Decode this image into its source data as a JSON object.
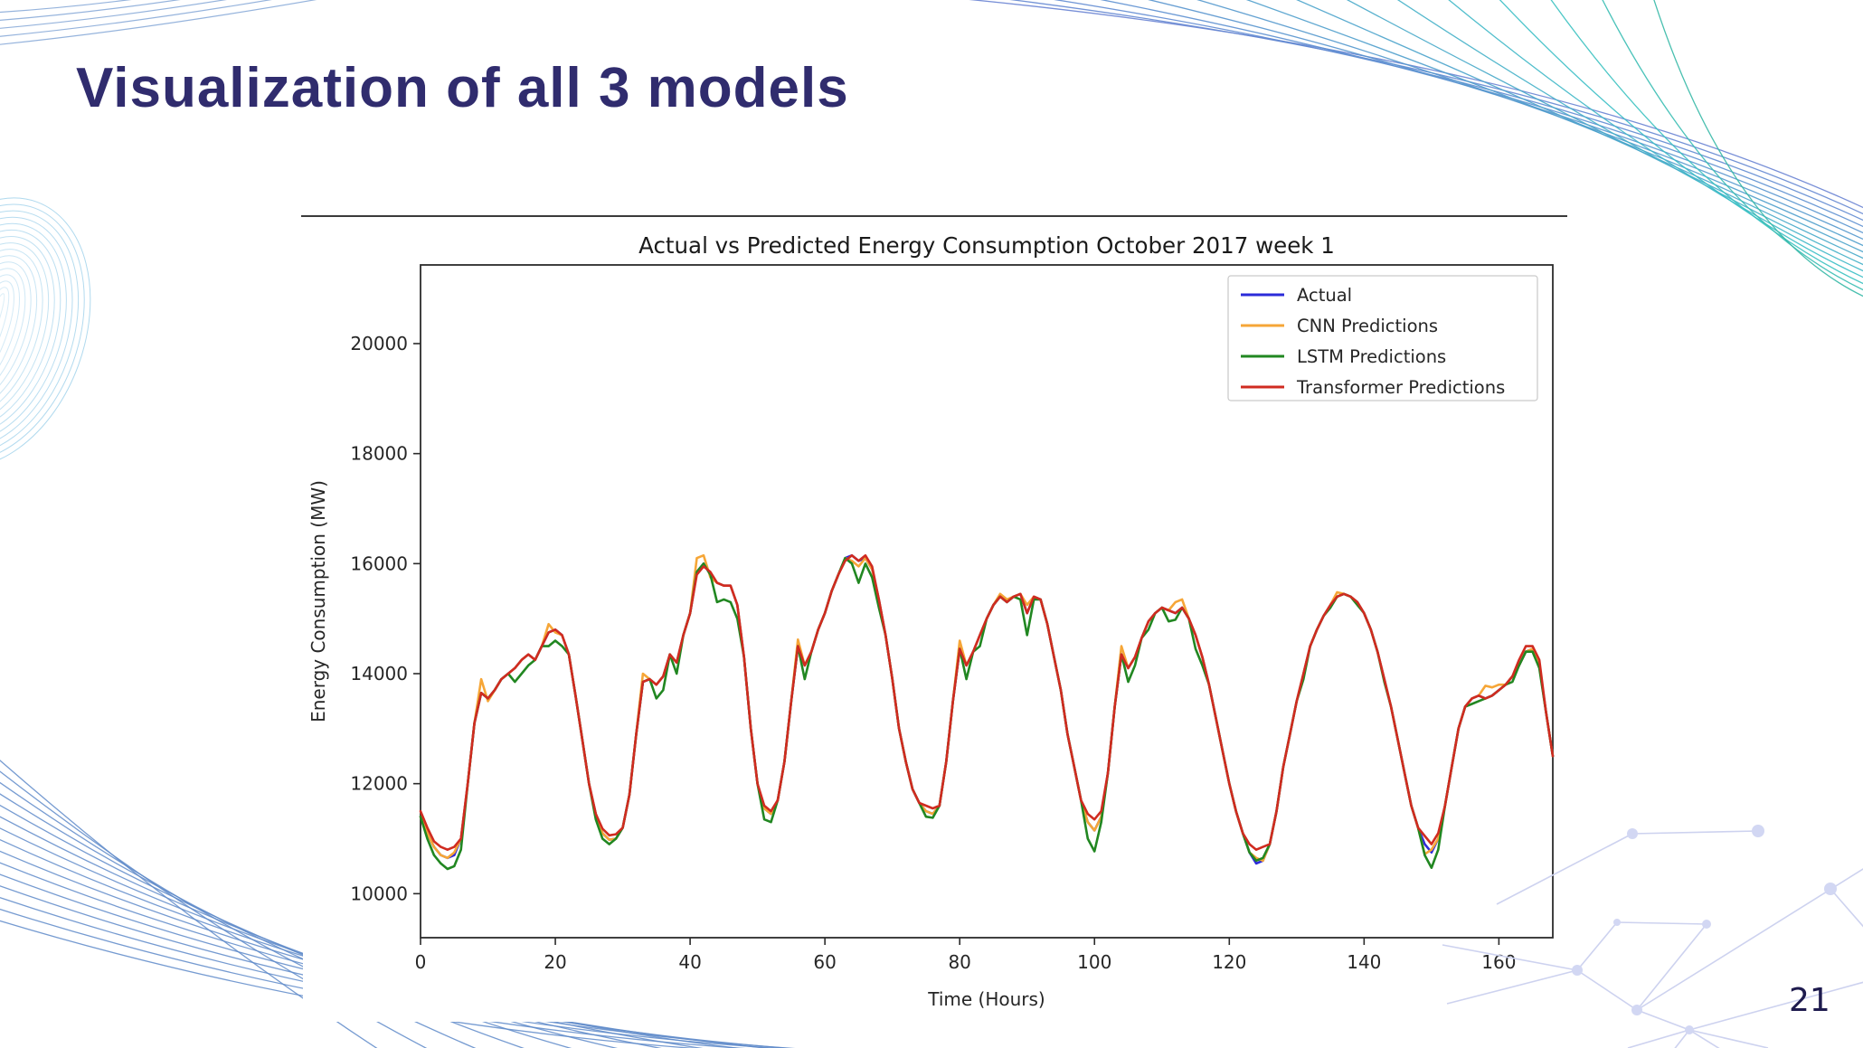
{
  "slide": {
    "title": "Visualization of all 3 models",
    "page_number": "21"
  },
  "colors": {
    "title_text": "#302c6e",
    "page_number_text": "#1e1b4e",
    "divider": "#3a3a3a",
    "wave_blue": "#5b87cd",
    "wave_teal": "#2fbcae",
    "wave_light_blue": "#97cde9",
    "constellation": "#cdd2ef"
  },
  "chart_data": {
    "type": "line",
    "title": "Actual vs Predicted Energy Consumption October 2017 week 1",
    "xlabel": "Time (Hours)",
    "ylabel": "Energy Consumption (MW)",
    "x_start": 0,
    "x_step": 1,
    "xlim": [
      0,
      168
    ],
    "ylim": [
      9200,
      21430
    ],
    "xticks": [
      0,
      20,
      40,
      60,
      80,
      100,
      120,
      140,
      160
    ],
    "yticks": [
      10000,
      12000,
      14000,
      16000,
      18000,
      20000
    ],
    "grid": false,
    "legend_position": "upper right",
    "series": [
      {
        "name": "Actual",
        "color": "#2b2bd9",
        "values": [
          11400,
          11100,
          10850,
          10700,
          10650,
          10700,
          11000,
          12000,
          13100,
          13650,
          13550,
          13700,
          13900,
          14000,
          14100,
          14250,
          14350,
          14250,
          14500,
          14750,
          14800,
          14700,
          14350,
          13600,
          12800,
          12000,
          11450,
          11100,
          10980,
          11000,
          11200,
          11800,
          12900,
          13850,
          13900,
          13800,
          13950,
          14350,
          14200,
          14700,
          15100,
          15850,
          16000,
          15800,
          15650,
          15600,
          15600,
          15250,
          14300,
          13000,
          12000,
          11550,
          11450,
          11700,
          12400,
          13500,
          14500,
          14150,
          14400,
          14800,
          15100,
          15500,
          15800,
          16100,
          16150,
          16050,
          16100,
          15900,
          15350,
          14700,
          13900,
          13000,
          12400,
          11900,
          11650,
          11500,
          11450,
          11600,
          12400,
          13500,
          14450,
          14150,
          14400,
          14700,
          15000,
          15250,
          15400,
          15300,
          15400,
          15450,
          15100,
          15400,
          15350,
          14900,
          14300,
          13700,
          12900,
          12300,
          11700,
          11300,
          11150,
          11400,
          12200,
          13400,
          14350,
          14100,
          14300,
          14650,
          14950,
          15100,
          15200,
          15150,
          15100,
          15200,
          15000,
          14700,
          14300,
          13800,
          13200,
          12600,
          12000,
          11500,
          11100,
          10750,
          10550,
          10600,
          10900,
          11500,
          12300,
          12900,
          13500,
          14000,
          14500,
          14800,
          15050,
          15250,
          15400,
          15450,
          15400,
          15300,
          15100,
          14800,
          14400,
          13900,
          13400,
          12800,
          12200,
          11600,
          11200,
          10900,
          10750,
          11000,
          11600,
          12300,
          13000,
          13400,
          13550,
          13600,
          13550,
          13600,
          13700,
          13800,
          13950,
          14150,
          14400,
          14450,
          14150,
          13300,
          12500
        ]
      },
      {
        "name": "CNN Predictions",
        "color": "#f6a637",
        "values": [
          11400,
          11100,
          10850,
          10700,
          10650,
          10750,
          11000,
          12000,
          13100,
          13900,
          13500,
          13700,
          13900,
          14000,
          14100,
          14250,
          14350,
          14250,
          14500,
          14900,
          14750,
          14700,
          14350,
          13600,
          12800,
          12000,
          11450,
          11100,
          10980,
          11000,
          11200,
          11800,
          12900,
          14000,
          13900,
          13800,
          13950,
          14350,
          14200,
          14700,
          15100,
          16100,
          16150,
          15750,
          15650,
          15600,
          15600,
          15250,
          14300,
          13000,
          12000,
          11550,
          11450,
          11700,
          12400,
          13500,
          14620,
          14150,
          14400,
          14800,
          15100,
          15500,
          15800,
          16100,
          16050,
          15950,
          16100,
          15900,
          15350,
          14700,
          13900,
          13000,
          12400,
          11900,
          11650,
          11500,
          11450,
          11600,
          12400,
          13500,
          14600,
          14150,
          14400,
          14700,
          15000,
          15250,
          15450,
          15350,
          15400,
          15450,
          15250,
          15400,
          15350,
          14900,
          14300,
          13700,
          12900,
          12300,
          11700,
          11300,
          11150,
          11400,
          12200,
          13400,
          14500,
          14100,
          14300,
          14650,
          14950,
          15100,
          15200,
          15150,
          15300,
          15350,
          15000,
          14700,
          14300,
          13800,
          13200,
          12600,
          12000,
          11500,
          11100,
          10750,
          10650,
          10600,
          10900,
          11500,
          12300,
          12900,
          13500,
          14000,
          14500,
          14800,
          15050,
          15250,
          15480,
          15450,
          15400,
          15300,
          15100,
          14800,
          14400,
          13900,
          13400,
          12800,
          12200,
          11600,
          11200,
          10720,
          10800,
          11000,
          11600,
          12300,
          13000,
          13400,
          13550,
          13600,
          13780,
          13750,
          13800,
          13800,
          13950,
          14150,
          14400,
          14450,
          14150,
          13300,
          12500
        ]
      },
      {
        "name": "LSTM Predictions",
        "color": "#218721",
        "values": [
          11400,
          11000,
          10700,
          10550,
          10450,
          10500,
          10800,
          12000,
          13100,
          13650,
          13550,
          13700,
          13900,
          14000,
          13850,
          14000,
          14150,
          14250,
          14500,
          14500,
          14600,
          14500,
          14350,
          13600,
          12800,
          12000,
          11350,
          11000,
          10900,
          11000,
          11200,
          11800,
          12900,
          13850,
          13900,
          13550,
          13700,
          14350,
          14000,
          14700,
          15100,
          15850,
          16000,
          15800,
          15300,
          15350,
          15300,
          15000,
          14300,
          13000,
          12000,
          11350,
          11300,
          11700,
          12400,
          13500,
          14500,
          13900,
          14400,
          14800,
          15100,
          15500,
          15800,
          16100,
          16000,
          15650,
          16000,
          15750,
          15200,
          14700,
          13900,
          13000,
          12400,
          11900,
          11650,
          11400,
          11380,
          11600,
          12400,
          13500,
          14450,
          13900,
          14400,
          14500,
          15000,
          15250,
          15400,
          15300,
          15400,
          15350,
          14700,
          15350,
          15350,
          14900,
          14300,
          13700,
          12900,
          12300,
          11700,
          11000,
          10770,
          11300,
          12200,
          13400,
          14350,
          13850,
          14150,
          14650,
          14800,
          15100,
          15200,
          14950,
          14980,
          15200,
          15000,
          14450,
          14150,
          13800,
          13200,
          12600,
          12000,
          11500,
          11100,
          10750,
          10600,
          10650,
          10900,
          11500,
          12300,
          12900,
          13500,
          13900,
          14500,
          14800,
          15050,
          15200,
          15400,
          15450,
          15400,
          15250,
          15100,
          14800,
          14400,
          13850,
          13400,
          12800,
          12200,
          11600,
          11200,
          10700,
          10470,
          10800,
          11600,
          12300,
          13000,
          13400,
          13450,
          13500,
          13550,
          13600,
          13700,
          13800,
          13850,
          14150,
          14400,
          14400,
          14100,
          13300,
          12500
        ]
      },
      {
        "name": "Transformer Predictions",
        "color": "#d02b20",
        "values": [
          11500,
          11200,
          10950,
          10850,
          10800,
          10850,
          11000,
          12000,
          13100,
          13650,
          13550,
          13700,
          13900,
          14000,
          14100,
          14250,
          14350,
          14250,
          14500,
          14750,
          14800,
          14700,
          14350,
          13600,
          12800,
          12000,
          11450,
          11180,
          11060,
          11080,
          11200,
          11800,
          12900,
          13850,
          13900,
          13800,
          13950,
          14350,
          14200,
          14700,
          15100,
          15800,
          15950,
          15850,
          15650,
          15600,
          15600,
          15250,
          14300,
          13000,
          12000,
          11600,
          11500,
          11700,
          12400,
          13500,
          14500,
          14150,
          14400,
          14800,
          15100,
          15500,
          15800,
          16050,
          16150,
          16050,
          16150,
          15950,
          15350,
          14700,
          13900,
          13000,
          12400,
          11900,
          11650,
          11600,
          11550,
          11600,
          12400,
          13500,
          14450,
          14150,
          14400,
          14700,
          15000,
          15250,
          15400,
          15300,
          15400,
          15450,
          15100,
          15400,
          15350,
          14900,
          14300,
          13700,
          12900,
          12300,
          11700,
          11450,
          11350,
          11500,
          12200,
          13400,
          14350,
          14100,
          14300,
          14650,
          14950,
          15100,
          15200,
          15150,
          15100,
          15200,
          15000,
          14700,
          14300,
          13800,
          13200,
          12600,
          12000,
          11500,
          11100,
          10900,
          10800,
          10850,
          10900,
          11500,
          12300,
          12900,
          13500,
          14000,
          14500,
          14800,
          15050,
          15250,
          15400,
          15450,
          15400,
          15300,
          15100,
          14800,
          14400,
          13900,
          13400,
          12800,
          12200,
          11600,
          11200,
          11050,
          10900,
          11100,
          11600,
          12300,
          13000,
          13400,
          13550,
          13600,
          13550,
          13600,
          13700,
          13800,
          13950,
          14250,
          14500,
          14500,
          14250,
          13300,
          12500
        ]
      }
    ]
  }
}
